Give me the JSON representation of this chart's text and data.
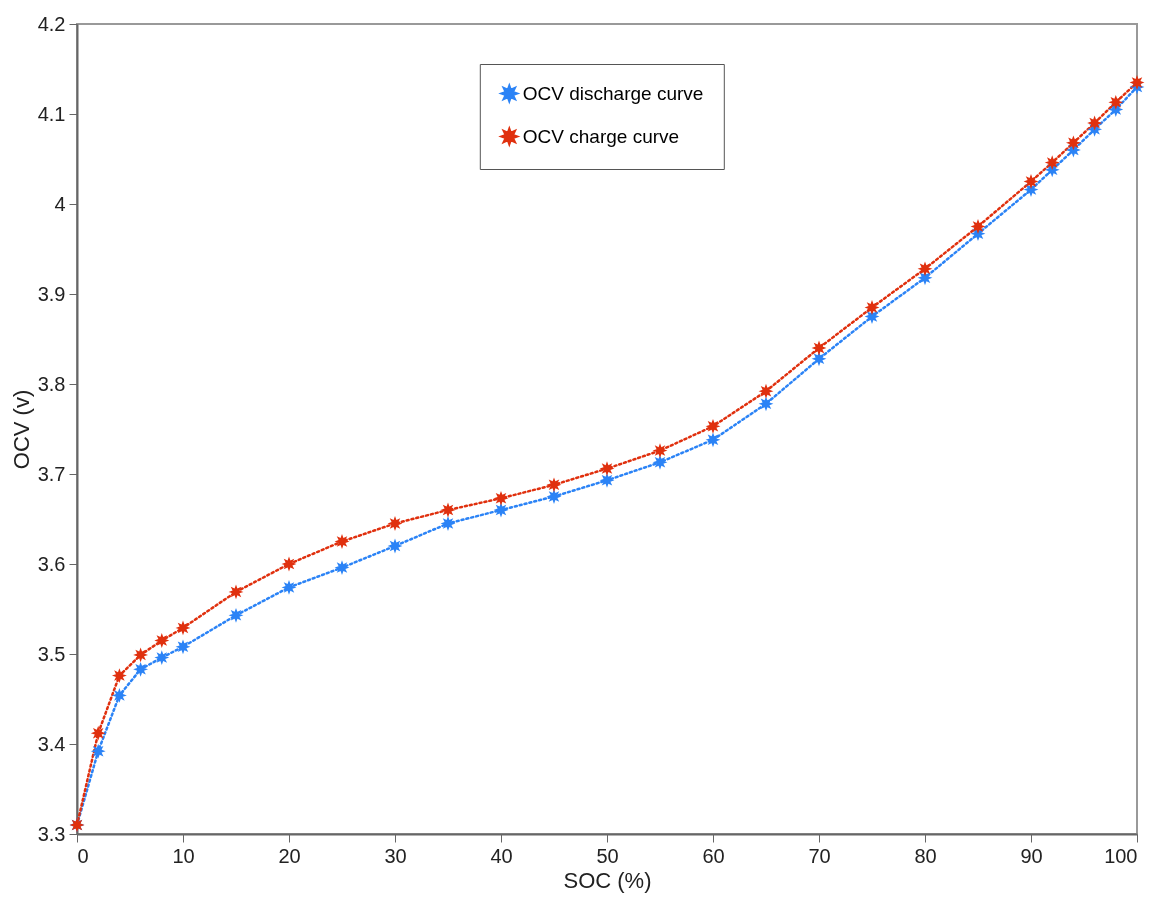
{
  "chart_data": {
    "type": "line",
    "xlabel": "SOC (%)",
    "ylabel": "OCV (v)",
    "x": [
      0,
      2,
      4,
      6,
      8,
      10,
      15,
      20,
      25,
      30,
      35,
      40,
      45,
      50,
      55,
      60,
      65,
      70,
      75,
      80,
      85,
      90,
      92,
      94,
      96,
      98,
      100
    ],
    "series": [
      {
        "name": "OCV discharge curve",
        "color": "#2b83f6",
        "values": [
          3.31,
          3.392,
          3.454,
          3.483,
          3.496,
          3.508,
          3.543,
          3.574,
          3.596,
          3.62,
          3.645,
          3.66,
          3.675,
          3.693,
          3.713,
          3.738,
          3.778,
          3.828,
          3.875,
          3.918,
          3.967,
          4.016,
          4.038,
          4.06,
          4.083,
          4.105,
          4.13
        ]
      },
      {
        "name": "OCV charge curve",
        "color": "#e0300e",
        "values": [
          3.31,
          3.412,
          3.476,
          3.499,
          3.515,
          3.529,
          3.569,
          3.6,
          3.625,
          3.645,
          3.66,
          3.673,
          3.688,
          3.706,
          3.726,
          3.753,
          3.792,
          3.84,
          3.885,
          3.928,
          3.975,
          4.025,
          4.046,
          4.068,
          4.09,
          4.113,
          4.135
        ]
      }
    ],
    "xlim": [
      0,
      100
    ],
    "xticks": [
      0,
      10,
      20,
      30,
      40,
      50,
      60,
      70,
      80,
      90,
      100
    ],
    "ylim": [
      3.3,
      4.2
    ],
    "yticks": [
      3.3,
      3.4,
      3.5,
      3.6,
      3.7,
      3.8,
      3.9,
      4,
      4.1,
      4.2
    ],
    "grid": false,
    "legend": "top",
    "marker": "star",
    "line_style": "dotted"
  }
}
